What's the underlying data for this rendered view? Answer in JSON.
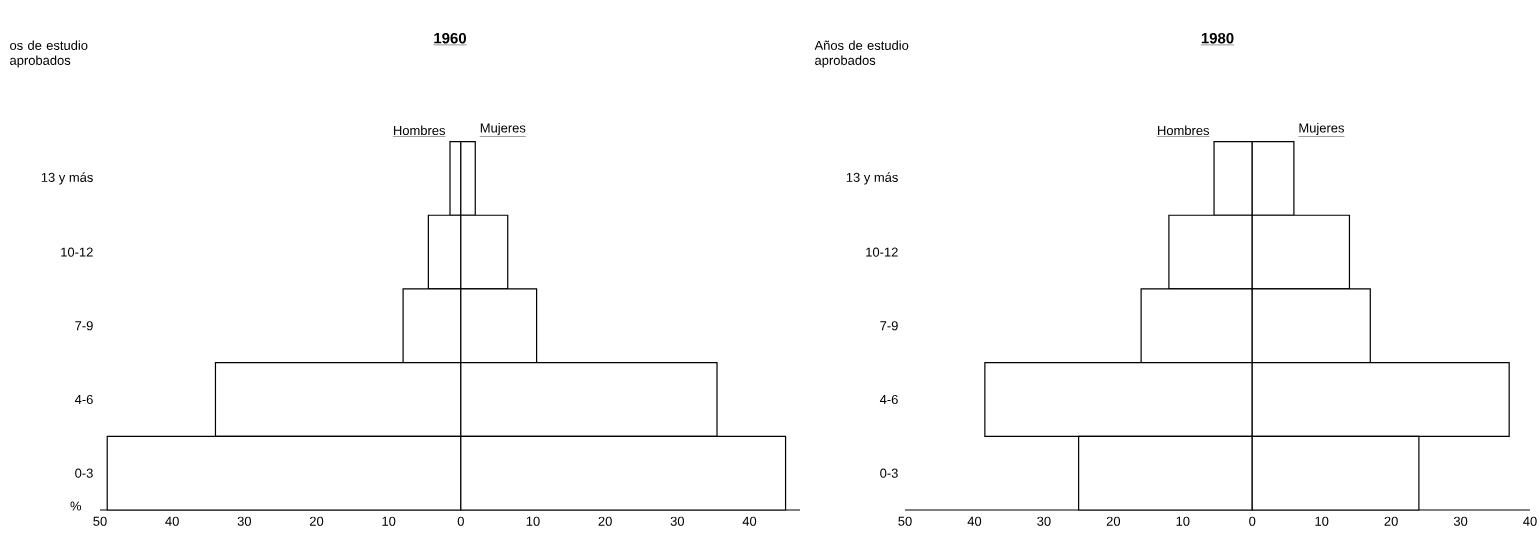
{
  "chart_data": [
    {
      "type": "bar",
      "orientation": "horizontal",
      "stacked": true,
      "title": "1960",
      "ylabel": "os de estudio aprobados",
      "xlabel": "%",
      "categories": [
        "13 y más",
        "10-12",
        "7-9",
        "4-6",
        "0-3"
      ],
      "series": [
        {
          "name": "Hombres",
          "color": "#000000",
          "values": [
            -1.5,
            -4.5,
            -8,
            -34,
            -49
          ]
        },
        {
          "name": "Mujeres",
          "color": "#000000",
          "values": [
            2,
            6.5,
            10.5,
            35.5,
            45
          ]
        }
      ],
      "xlim": [
        -50,
        47
      ],
      "xticks": [
        {
          "value": -50,
          "label": "50"
        },
        {
          "value": -40,
          "label": "40"
        },
        {
          "value": -30,
          "label": "30"
        },
        {
          "value": -20,
          "label": "20"
        },
        {
          "value": -10,
          "label": "10"
        },
        0,
        10,
        20,
        30,
        40
      ]
    },
    {
      "type": "bar",
      "orientation": "horizontal",
      "stacked": true,
      "title": "1980",
      "ylabel": "Años de estudio aprobados",
      "categories": [
        "13 y más",
        "10-12",
        "7-9",
        "4-6",
        "0-3"
      ],
      "series": [
        {
          "name": "Hombres",
          "color": "#000000",
          "values": [
            -5.5,
            -12,
            -16,
            -38.5,
            -25
          ]
        },
        {
          "name": "Mujeres",
          "color": "#000000",
          "values": [
            6,
            14,
            17,
            37,
            24
          ]
        }
      ],
      "xlim": [
        -50,
        40
      ],
      "xticks": [
        {
          "value": -50,
          "label": "50"
        },
        {
          "value": -40,
          "label": "40"
        },
        {
          "value": -30,
          "label": "30"
        },
        {
          "value": -20,
          "label": "20"
        },
        {
          "value": -10,
          "label": "10"
        },
        0,
        10,
        20,
        30,
        40
      ]
    }
  ]
}
